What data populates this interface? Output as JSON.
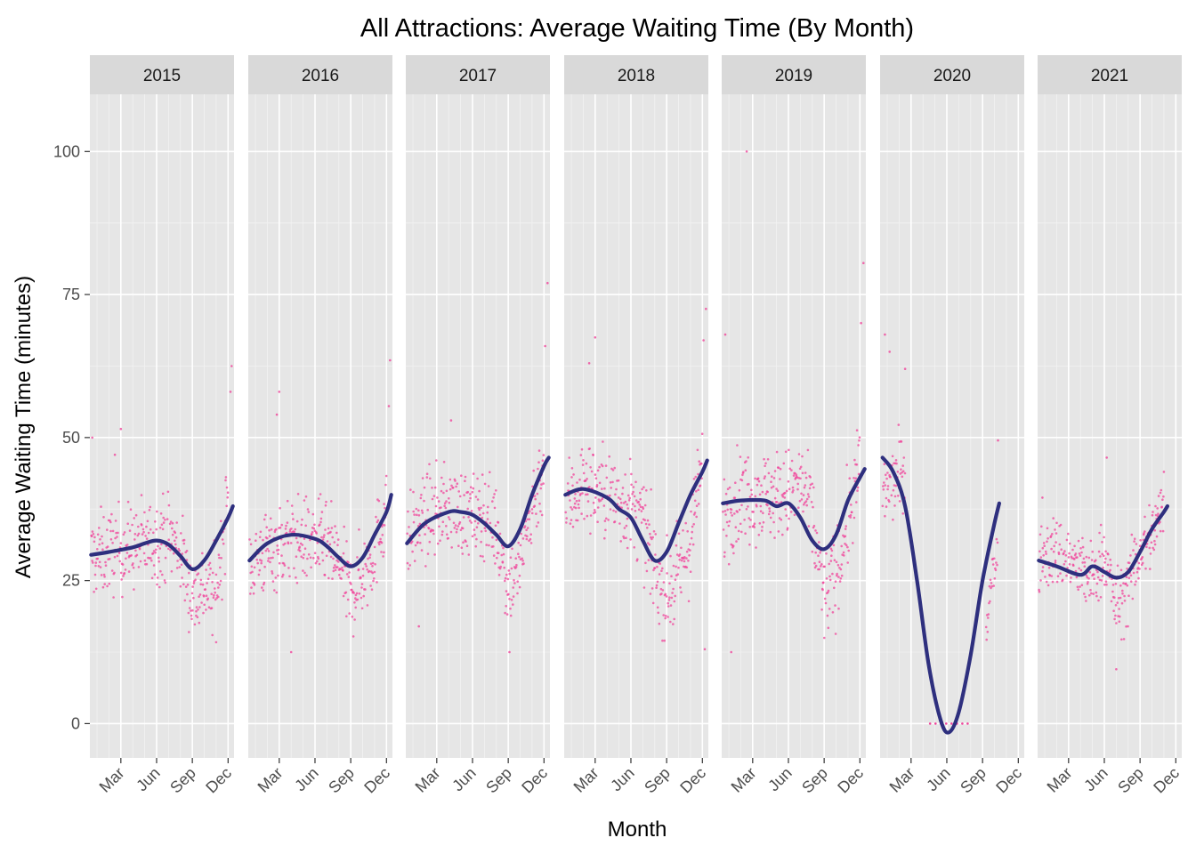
{
  "chart_data": {
    "type": "scatter",
    "title": "All Attractions: Average Waiting Time (By Month)",
    "xlabel": "Month",
    "ylabel": "Average Waiting Time (minutes)",
    "ylim": [
      -6,
      110
    ],
    "y_ticks": [
      0,
      25,
      50,
      75,
      100
    ],
    "x_domain_months": [
      0.4,
      12.5
    ],
    "x_ticks": [
      {
        "label": "Mar",
        "month": 3
      },
      {
        "label": "Jun",
        "month": 6
      },
      {
        "label": "Sep",
        "month": 9
      },
      {
        "label": "Dec",
        "month": 12
      }
    ],
    "grid": true,
    "point_color": "#f0459b",
    "line_color": "#2e2f7e",
    "panel_background": "#e6e6e6",
    "strip_background": "#d9d9d9",
    "facets": [
      {
        "year": "2015",
        "trend": [
          [
            0.5,
            29.5
          ],
          [
            2,
            30
          ],
          [
            4,
            30.8
          ],
          [
            5,
            31.5
          ],
          [
            6,
            32
          ],
          [
            7,
            31.3
          ],
          [
            8,
            29.3
          ],
          [
            9,
            27
          ],
          [
            10,
            28.5
          ],
          [
            11,
            32
          ],
          [
            12,
            36
          ],
          [
            12.4,
            38
          ]
        ],
        "points_profile": [
          [
            0.5,
            29
          ],
          [
            2,
            30
          ],
          [
            4,
            31
          ],
          [
            6,
            32
          ],
          [
            7,
            33
          ],
          [
            8,
            30
          ],
          [
            9,
            22
          ],
          [
            10,
            24
          ],
          [
            11,
            22
          ],
          [
            12,
            40
          ]
        ],
        "points_spread": 7,
        "extras": [
          [
            0.6,
            50
          ],
          [
            12.3,
            62.5
          ],
          [
            12.2,
            58
          ],
          [
            3,
            51.5
          ],
          [
            2.5,
            47
          ]
        ]
      },
      {
        "year": "2016",
        "trend": [
          [
            0.5,
            28.5
          ],
          [
            2,
            31.5
          ],
          [
            4,
            33
          ],
          [
            6,
            32.3
          ],
          [
            7,
            31
          ],
          [
            8,
            29
          ],
          [
            9,
            27.5
          ],
          [
            10,
            29
          ],
          [
            11,
            33
          ],
          [
            12,
            37
          ],
          [
            12.4,
            40
          ]
        ],
        "points_profile": [
          [
            0.5,
            28
          ],
          [
            2,
            30
          ],
          [
            4,
            32
          ],
          [
            6,
            32
          ],
          [
            7,
            31
          ],
          [
            8,
            28
          ],
          [
            9,
            22
          ],
          [
            10,
            26
          ],
          [
            11,
            30
          ],
          [
            12,
            38
          ]
        ],
        "points_spread": 7,
        "extras": [
          [
            3,
            58
          ],
          [
            12.3,
            63.5
          ],
          [
            12.2,
            55.5
          ],
          [
            4,
            12.5
          ],
          [
            2.8,
            54
          ]
        ]
      },
      {
        "year": "2017",
        "trend": [
          [
            0.5,
            31.5
          ],
          [
            2,
            35
          ],
          [
            4,
            37
          ],
          [
            5,
            37
          ],
          [
            6,
            36.5
          ],
          [
            7,
            35
          ],
          [
            8,
            33
          ],
          [
            9,
            31
          ],
          [
            10,
            34
          ],
          [
            11,
            40
          ],
          [
            12,
            45
          ],
          [
            12.4,
            46.5
          ]
        ],
        "points_profile": [
          [
            0.5,
            32
          ],
          [
            2,
            36
          ],
          [
            4,
            38
          ],
          [
            6,
            36
          ],
          [
            7,
            37
          ],
          [
            8,
            34
          ],
          [
            9,
            24
          ],
          [
            10,
            28
          ],
          [
            11,
            38
          ],
          [
            12,
            45
          ]
        ],
        "points_spread": 7,
        "extras": [
          [
            12.3,
            77
          ],
          [
            12.1,
            66
          ],
          [
            4.2,
            53
          ],
          [
            1.5,
            17
          ],
          [
            9.1,
            12.5
          ]
        ]
      },
      {
        "year": "2018",
        "trend": [
          [
            0.5,
            40
          ],
          [
            2,
            41
          ],
          [
            4,
            39.5
          ],
          [
            5,
            37.5
          ],
          [
            6,
            36
          ],
          [
            7,
            32
          ],
          [
            8,
            28.5
          ],
          [
            9,
            30
          ],
          [
            10,
            35
          ],
          [
            11,
            40
          ],
          [
            12,
            44
          ],
          [
            12.4,
            46
          ]
        ],
        "points_profile": [
          [
            0.5,
            38
          ],
          [
            2,
            42
          ],
          [
            4,
            40
          ],
          [
            6,
            38
          ],
          [
            7,
            35
          ],
          [
            8,
            27
          ],
          [
            9,
            22
          ],
          [
            10,
            26
          ],
          [
            11,
            32
          ],
          [
            12,
            45
          ]
        ],
        "points_spread": 7.5,
        "extras": [
          [
            12.3,
            72.5
          ],
          [
            12.1,
            67
          ],
          [
            3,
            67.5
          ],
          [
            2.5,
            63
          ],
          [
            12.2,
            13
          ]
        ]
      },
      {
        "year": "2019",
        "trend": [
          [
            0.5,
            38.5
          ],
          [
            2,
            39
          ],
          [
            4,
            39
          ],
          [
            5,
            38
          ],
          [
            6,
            38.5
          ],
          [
            7,
            36
          ],
          [
            8,
            32
          ],
          [
            9,
            30.5
          ],
          [
            10,
            33
          ],
          [
            11,
            39
          ],
          [
            12,
            43
          ],
          [
            12.4,
            44.5
          ]
        ],
        "points_profile": [
          [
            0.5,
            36
          ],
          [
            2,
            40
          ],
          [
            4,
            40
          ],
          [
            6,
            40
          ],
          [
            7,
            42
          ],
          [
            8,
            36
          ],
          [
            9,
            22
          ],
          [
            10,
            26
          ],
          [
            11,
            35
          ],
          [
            12,
            45
          ]
        ],
        "points_spread": 7.5,
        "extras": [
          [
            2.5,
            100
          ],
          [
            12.3,
            80.5
          ],
          [
            0.7,
            68
          ],
          [
            12.1,
            70
          ],
          [
            1.2,
            12.5
          ]
        ]
      },
      {
        "year": "2020",
        "trend": [
          [
            0.6,
            46.5
          ],
          [
            1.5,
            44
          ],
          [
            2.5,
            38
          ],
          [
            3.5,
            25
          ],
          [
            4.5,
            10
          ],
          [
            5.5,
            0.5
          ],
          [
            6.2,
            -1.5
          ],
          [
            7,
            2
          ],
          [
            8,
            12
          ],
          [
            9,
            25
          ],
          [
            10,
            35
          ],
          [
            10.4,
            38.5
          ]
        ],
        "points_profile": [
          [
            0.6,
            40
          ],
          [
            1.5,
            42
          ],
          [
            2.5,
            45
          ]
        ],
        "points_spread": 6,
        "extras": [
          [
            0.8,
            68
          ],
          [
            1.2,
            65
          ],
          [
            2.5,
            62
          ],
          [
            10.3,
            49.5
          ]
        ]
      },
      {
        "year": "2021",
        "trend": [
          [
            0.5,
            28.5
          ],
          [
            2,
            27.5
          ],
          [
            4,
            26
          ],
          [
            5,
            27.5
          ],
          [
            6,
            26.5
          ],
          [
            7,
            25.5
          ],
          [
            8,
            26.5
          ],
          [
            9,
            30
          ],
          [
            10,
            34
          ],
          [
            11,
            37
          ],
          [
            11.3,
            38
          ]
        ],
        "points_profile": [
          [
            0.5,
            29
          ],
          [
            2,
            30
          ],
          [
            4,
            27
          ],
          [
            5,
            25
          ],
          [
            6,
            30
          ],
          [
            7,
            20
          ],
          [
            8,
            24
          ],
          [
            9,
            30
          ],
          [
            10,
            33
          ],
          [
            11,
            38
          ]
        ],
        "points_spread": 6,
        "extras": [
          [
            6.2,
            46.5
          ],
          [
            7,
            9.5
          ],
          [
            11,
            44
          ],
          [
            0.8,
            39.5
          ]
        ]
      }
    ]
  }
}
